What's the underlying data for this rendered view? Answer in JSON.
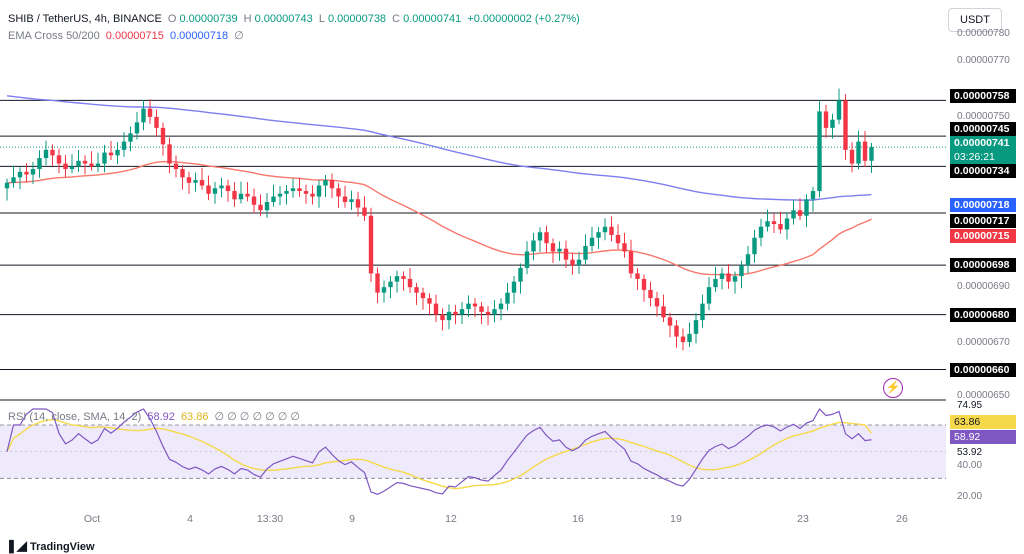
{
  "header": {
    "symbol": "SHIB / TetherUS, 4h, BINANCE",
    "o_label": "O",
    "o_value": "0.00000739",
    "h_label": "H",
    "h_value": "0.00000743",
    "l_label": "L",
    "l_value": "0.00000738",
    "c_label": "C",
    "c_value": "0.00000741",
    "change": "+0.00000002 (+0.27%)",
    "ema_label": "EMA Cross 50/200",
    "ema50_value": "0.00000715",
    "ema200_value": "0.00000718",
    "ema_extra": "∅"
  },
  "rsi_header": {
    "label": "RSI (14, close, SMA, 14, 2)",
    "value": "58.92",
    "ma_value": "63.86",
    "extra": "∅ ∅ ∅ ∅ ∅ ∅ ∅"
  },
  "currency_button": "USDT",
  "price_labels": {
    "l758": "0.00000758",
    "l745": "0.00000745",
    "current": "0.00000741",
    "countdown": "03:26:21",
    "l734": "0.00000734",
    "ema200": "0.00000718",
    "l717": "0.00000717",
    "ema50": "0.00000715",
    "l698": "0.00000698",
    "l680": "0.00000680",
    "l660": "0.00000660"
  },
  "y_axis_ticks": [
    "0.00000780",
    "0.00000770",
    "0.00000750",
    "0.00000690",
    "0.00000670",
    "0.00000650"
  ],
  "rsi_axis": {
    "t7495": "74.95",
    "t6386": "63.86",
    "t5892": "58.92",
    "t5392": "53.92",
    "t40": "40.00",
    "t20": "20.00"
  },
  "x_axis_ticks": [
    "Oct",
    "4",
    "13:30",
    "9",
    "12",
    "16",
    "19",
    "23",
    "26"
  ],
  "branding": "TradingView",
  "colors": {
    "up": "#089981",
    "down": "#f23645",
    "ema50": "#f7786b",
    "ema200": "#7e7ef0",
    "rsi": "#7e57c2",
    "rsi_ma": "#f5d94a",
    "rsi_band": "#efeafb"
  },
  "chart_data": {
    "type": "candlestick",
    "timeframe": "4h",
    "price_range": [
      6.5e-06,
      7.8e-06
    ],
    "horizontal_levels": [
      7.58e-06,
      7.45e-06,
      7.34e-06,
      7.17e-06,
      6.98e-06,
      6.8e-06,
      6.6e-06
    ],
    "close_series": [
      7.28e-06,
      7.3e-06,
      7.32e-06,
      7.31e-06,
      7.33e-06,
      7.37e-06,
      7.4e-06,
      7.38e-06,
      7.35e-06,
      7.33e-06,
      7.34e-06,
      7.36e-06,
      7.35e-06,
      7.34e-06,
      7.35e-06,
      7.39e-06,
      7.38e-06,
      7.4e-06,
      7.43e-06,
      7.46e-06,
      7.5e-06,
      7.55e-06,
      7.52e-06,
      7.48e-06,
      7.42e-06,
      7.35e-06,
      7.33e-06,
      7.3e-06,
      7.28e-06,
      7.29e-06,
      7.27e-06,
      7.24e-06,
      7.26e-06,
      7.27e-06,
      7.25e-06,
      7.22e-06,
      7.24e-06,
      7.23e-06,
      7.2e-06,
      7.18e-06,
      7.21e-06,
      7.23e-06,
      7.24e-06,
      7.25e-06,
      7.26e-06,
      7.25e-06,
      7.24e-06,
      7.23e-06,
      7.27e-06,
      7.29e-06,
      7.26e-06,
      7.23e-06,
      7.21e-06,
      7.22e-06,
      7.19e-06,
      7.16e-06,
      6.95e-06,
      6.88e-06,
      6.9e-06,
      6.92e-06,
      6.94e-06,
      6.93e-06,
      6.9e-06,
      6.88e-06,
      6.86e-06,
      6.84e-06,
      6.8e-06,
      6.78e-06,
      6.81e-06,
      6.8e-06,
      6.82e-06,
      6.84e-06,
      6.83e-06,
      6.81e-06,
      6.8e-06,
      6.82e-06,
      6.84e-06,
      6.88e-06,
      6.92e-06,
      6.97e-06,
      7.03e-06,
      7.07e-06,
      7.1e-06,
      7.06e-06,
      7.03e-06,
      7.04e-06,
      7e-06,
      6.98e-06,
      7e-06,
      7.05e-06,
      7.08e-06,
      7.1e-06,
      7.12e-06,
      7.09e-06,
      7.06e-06,
      7.03e-06,
      6.95e-06,
      6.93e-06,
      6.89e-06,
      6.86e-06,
      6.83e-06,
      6.79e-06,
      6.76e-06,
      6.72e-06,
      6.7e-06,
      6.73e-06,
      6.78e-06,
      6.84e-06,
      6.9e-06,
      6.93e-06,
      6.95e-06,
      6.92e-06,
      6.94e-06,
      6.98e-06,
      7.02e-06,
      7.08e-06,
      7.12e-06,
      7.14e-06,
      7.13e-06,
      7.11e-06,
      7.15e-06,
      7.18e-06,
      7.16e-06,
      7.22e-06,
      7.25e-06,
      7.54e-06,
      7.48e-06,
      7.51e-06,
      7.58e-06,
      7.4e-06,
      7.35e-06,
      7.43e-06,
      7.36e-06,
      7.41e-06
    ],
    "rsi_range": [
      10,
      85
    ],
    "rsi_band": [
      30,
      70
    ],
    "rsi_value": 58.92,
    "rsi_ma_value": 63.86,
    "ema50_last": 7.15e-06,
    "ema200_last": 7.18e-06,
    "x_labels": [
      "Oct",
      "4",
      "13:30",
      "9",
      "12",
      "16",
      "19",
      "23",
      "26"
    ]
  }
}
